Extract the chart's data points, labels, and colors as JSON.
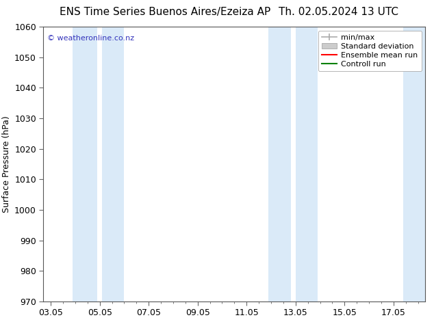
{
  "title_left": "ENS Time Series Buenos Aires/Ezeiza AP",
  "title_right": "Th. 02.05.2024 13 UTC",
  "ylabel": "Surface Pressure (hPa)",
  "ylim": [
    970,
    1060
  ],
  "yticks": [
    970,
    980,
    990,
    1000,
    1010,
    1020,
    1030,
    1040,
    1050,
    1060
  ],
  "xlabels": [
    "03.05",
    "05.05",
    "07.05",
    "09.05",
    "11.05",
    "13.05",
    "15.05",
    "17.05"
  ],
  "x_tick_positions": [
    0,
    2,
    4,
    6,
    8,
    10,
    12,
    14
  ],
  "xlim": [
    -0.3,
    15.3
  ],
  "background_color": "#ffffff",
  "plot_bg_color": "#ffffff",
  "shaded_regions": [
    {
      "x_start": 0.9,
      "x_end": 1.9,
      "color": "#daeaf8"
    },
    {
      "x_start": 2.1,
      "x_end": 3.0,
      "color": "#daeaf8"
    },
    {
      "x_start": 8.9,
      "x_end": 9.8,
      "color": "#daeaf8"
    },
    {
      "x_start": 10.0,
      "x_end": 10.9,
      "color": "#daeaf8"
    },
    {
      "x_start": 14.4,
      "x_end": 15.3,
      "color": "#daeaf8"
    }
  ],
  "legend_items": [
    {
      "label": "min/max",
      "color": "#aaaaaa",
      "lw": 1.2,
      "type": "errorbar"
    },
    {
      "label": "Standard deviation",
      "color": "#cccccc",
      "lw": 8,
      "type": "band"
    },
    {
      "label": "Ensemble mean run",
      "color": "#ff0000",
      "lw": 1.5,
      "type": "line"
    },
    {
      "label": "Controll run",
      "color": "#008000",
      "lw": 1.5,
      "type": "line"
    }
  ],
  "watermark_text": "© weatheronline.co.nz",
  "watermark_color": "#3333bb",
  "title_fontsize": 11,
  "tick_fontsize": 9,
  "ylabel_fontsize": 9,
  "legend_fontsize": 8
}
